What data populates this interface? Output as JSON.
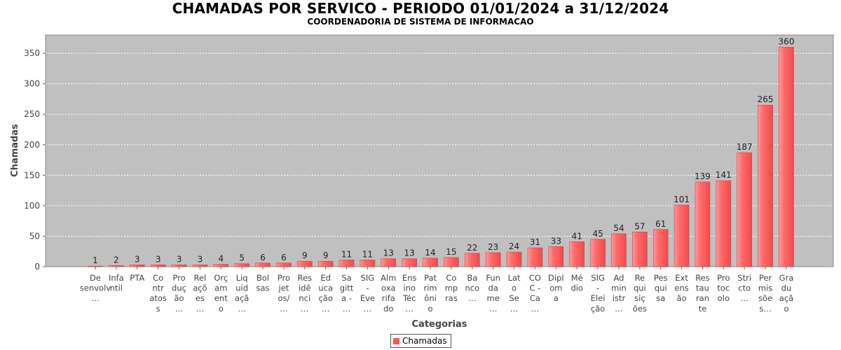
{
  "chart_data": {
    "type": "bar",
    "title": "CHAMADAS POR SERVICO - PERIODO 01/01/2024 a 31/12/2024",
    "subtitle": "COORDENADORIA DE SISTEMA DE INFORMACAO",
    "xlabel": "Categorias",
    "ylabel": "Chamadas",
    "ylim": [
      0,
      380
    ],
    "yticks": [
      0,
      50,
      100,
      150,
      200,
      250,
      300,
      350
    ],
    "grid": true,
    "legend_position": "bottom",
    "categories": [
      "De senvolv …",
      "Infa ntil",
      "PTA",
      "Co ntr atos s",
      "Pro duç ão …",
      "Rel açõ es …",
      "Orç am ent o",
      "Liq uid açã …",
      "Bol sas",
      "Pro jet os/ …",
      "Res idê nci …",
      "Ed uca ção …",
      "Sa gitt a - …",
      "SIG - Eve …",
      "Alm oxa rifa do",
      "Ens ino Téc …",
      "Pat rim ôni o",
      "Co mp ras",
      "Ba nco …",
      "Fun da me …",
      "Lat o Se …",
      "CO C - Ca …",
      "Dipl om a",
      "Mé dio",
      "SIG - Elei ção",
      "Ad min istr …",
      "Re qui siç ões",
      "Pes qui sa",
      "Ext ens ão",
      "Res tau ran te",
      "Pro toc olo",
      "Stri cto …",
      "Per mis sõe s…",
      "Gra du açã o"
    ],
    "category_lines": [
      [
        "De",
        "senvolv",
        "…"
      ],
      [
        "Infa",
        "ntil"
      ],
      [
        "PTA"
      ],
      [
        "Co",
        "ntr",
        "atos",
        "s"
      ],
      [
        "Pro",
        "duç",
        "ão",
        "…"
      ],
      [
        "Rel",
        "açõ",
        "es",
        "…"
      ],
      [
        "Orç",
        "am",
        "ent",
        "o"
      ],
      [
        "Liq",
        "uid",
        "açã",
        "…"
      ],
      [
        "Bol",
        "sas"
      ],
      [
        "Pro",
        "jet",
        "os/",
        "…"
      ],
      [
        "Res",
        "idê",
        "nci",
        "…"
      ],
      [
        "Ed",
        "uca",
        "ção",
        "…"
      ],
      [
        "Sa",
        "gitt",
        "a -",
        "…"
      ],
      [
        "SIG",
        "-",
        "Eve",
        "…"
      ],
      [
        "Alm",
        "oxa",
        "rifa",
        "do"
      ],
      [
        "Ens",
        "ino",
        "Téc",
        "…"
      ],
      [
        "Pat",
        "rim",
        "ôni",
        "o"
      ],
      [
        "Co",
        "mp",
        "ras"
      ],
      [
        "Ba",
        "nco",
        "…"
      ],
      [
        "Fun",
        "da",
        "me",
        "…"
      ],
      [
        "Lat",
        "o",
        "Se",
        "…"
      ],
      [
        "CO",
        "C -",
        "Ca",
        "…"
      ],
      [
        "Dipl",
        "om",
        "a"
      ],
      [
        "Mé",
        "dio"
      ],
      [
        "SIG",
        "-",
        "Elei",
        "ção"
      ],
      [
        "Ad",
        "min",
        "istr",
        "…"
      ],
      [
        "Re",
        "qui",
        "siç",
        "ões"
      ],
      [
        "Pes",
        "qui",
        "sa"
      ],
      [
        "Ext",
        "ens",
        "ão"
      ],
      [
        "Res",
        "tau",
        "ran",
        "te"
      ],
      [
        "Pro",
        "toc",
        "olo"
      ],
      [
        "Stri",
        "cto",
        "…"
      ],
      [
        "Per",
        "mis",
        "sõe",
        "s…"
      ],
      [
        "Gra",
        "du",
        "açã",
        "o"
      ]
    ],
    "series": [
      {
        "name": "Chamadas",
        "color": "#ff5555",
        "values": [
          1,
          2,
          3,
          3,
          3,
          3,
          4,
          5,
          6,
          6,
          9,
          9,
          11,
          11,
          13,
          13,
          14,
          15,
          22,
          23,
          24,
          31,
          33,
          41,
          45,
          54,
          57,
          61,
          101,
          139,
          141,
          187,
          265,
          360
        ]
      }
    ]
  },
  "legend": {
    "label": "Chamadas"
  },
  "colors": {
    "plot_background": "#c0c0c0",
    "bar": "#ff5555",
    "grid": "#ffffff"
  }
}
